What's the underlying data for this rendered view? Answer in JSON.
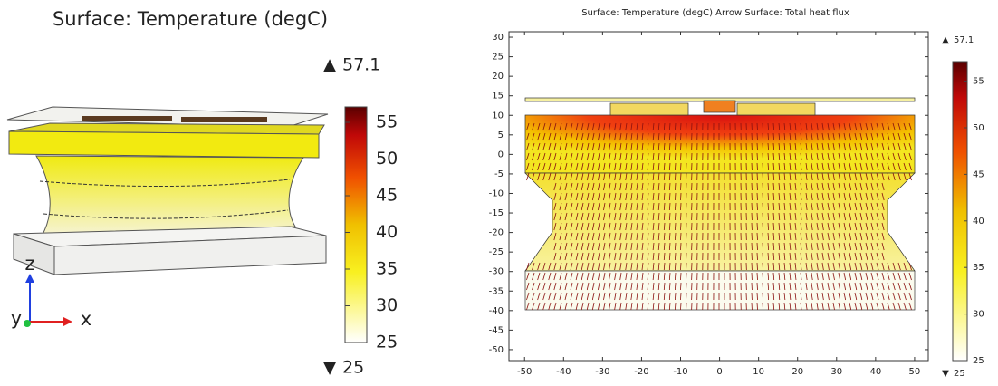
{
  "left": {
    "title": "Surface: Temperature (degC)",
    "max": 57.1,
    "min": 25,
    "ticks": [
      25,
      30,
      35,
      40,
      45,
      50,
      55
    ],
    "axes": [
      "z",
      "y",
      "x"
    ]
  },
  "right": {
    "title": "Surface: Temperature (degC)  Arrow Surface: Total heat flux",
    "xlim": [
      -54,
      53.5
    ],
    "ylim": [
      -52.8,
      31.4
    ],
    "xticks": [
      -50,
      -40,
      -30,
      -20,
      -10,
      0,
      10,
      20,
      30,
      40,
      50
    ],
    "yticks": [
      -50,
      -45,
      -40,
      -35,
      -30,
      -25,
      -20,
      -15,
      -10,
      -5,
      0,
      5,
      10,
      15,
      20,
      25,
      30
    ],
    "max": 57.1,
    "min": 25,
    "cticks": [
      25,
      30,
      35,
      40,
      45,
      50,
      55
    ]
  }
}
